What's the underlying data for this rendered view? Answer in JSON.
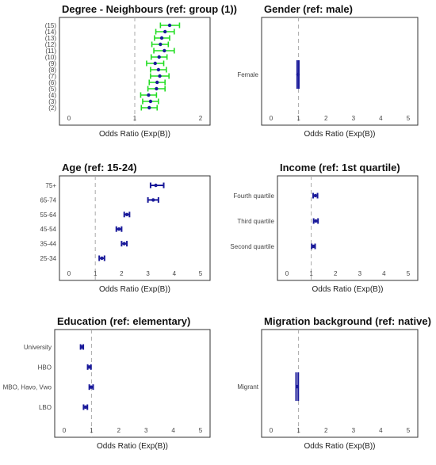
{
  "chart_data": [
    {
      "type": "forest",
      "title": "Degree - Neighbours (ref: group (1))",
      "xlabel": "Odds Ratio (Exp(B))",
      "xlim": [
        0,
        2
      ],
      "xticks": [
        "0",
        "1",
        "2"
      ],
      "ref_line": 1,
      "ci_color": "#22dd22",
      "point_color": "#1a1a9a",
      "categories": [
        "(15)",
        "(14)",
        "(13)",
        "(12)",
        "(11)",
        "(10)",
        "(9)",
        "(8)",
        "(7)",
        "(6)",
        "(5)",
        "(4)",
        "(3)",
        "(2)"
      ],
      "estimates": [
        1.53,
        1.46,
        1.41,
        1.39,
        1.45,
        1.37,
        1.31,
        1.36,
        1.38,
        1.34,
        1.33,
        1.21,
        1.24,
        1.22
      ],
      "lower": [
        1.39,
        1.32,
        1.3,
        1.26,
        1.29,
        1.25,
        1.18,
        1.24,
        1.24,
        1.22,
        1.2,
        1.09,
        1.12,
        1.1
      ],
      "upper": [
        1.68,
        1.6,
        1.53,
        1.51,
        1.6,
        1.49,
        1.44,
        1.48,
        1.52,
        1.46,
        1.46,
        1.33,
        1.36,
        1.34
      ]
    },
    {
      "type": "forest",
      "title": "Gender (ref: male)",
      "xlabel": "Odds Ratio (Exp(B))",
      "xlim": [
        0,
        5
      ],
      "xticks": [
        "0",
        "1",
        "2",
        "3",
        "4",
        "5"
      ],
      "ref_line": 1,
      "ci_color": "#1a1a9a",
      "point_color": "#1a1a9a",
      "categories": [
        "Female"
      ],
      "estimates": [
        0.98
      ],
      "lower": [
        0.95
      ],
      "upper": [
        1.01
      ]
    },
    {
      "type": "forest",
      "title": "Age (ref: 15-24)",
      "xlabel": "Odds Ratio (Exp(B))",
      "xlim": [
        0,
        5
      ],
      "xticks": [
        "0",
        "1",
        "2",
        "3",
        "4",
        "5"
      ],
      "ref_line": 1,
      "ci_color": "#1a1a9a",
      "point_color": "#1a1a9a",
      "categories": [
        "75+",
        "65-74",
        "55-64",
        "45-54",
        "35-44",
        "25-34"
      ],
      "estimates": [
        3.3,
        3.2,
        2.2,
        1.9,
        2.1,
        1.25
      ],
      "lower": [
        3.1,
        3.0,
        2.1,
        1.8,
        2.0,
        1.15
      ],
      "upper": [
        3.6,
        3.4,
        2.3,
        2.0,
        2.2,
        1.35
      ]
    },
    {
      "type": "forest",
      "title": "Income (ref: 1st quartile)",
      "xlabel": "Odds Ratio (Exp(B))",
      "xlim": [
        0,
        5
      ],
      "xticks": [
        "0",
        "1",
        "2",
        "3",
        "4",
        "5"
      ],
      "ref_line": 1,
      "ci_color": "#1a1a9a",
      "point_color": "#1a1a9a",
      "categories": [
        "Fourth quartile",
        "Third quartile",
        "Second quartile"
      ],
      "estimates": [
        1.17,
        1.19,
        1.09
      ],
      "lower": [
        1.08,
        1.1,
        1.02
      ],
      "upper": [
        1.26,
        1.28,
        1.16
      ]
    },
    {
      "type": "forest",
      "title": "Education (ref: elementary)",
      "xlabel": "Odds Ratio (Exp(B))",
      "xlim": [
        0,
        5
      ],
      "xticks": [
        "0",
        "1",
        "2",
        "3",
        "4",
        "5"
      ],
      "ref_line": 1,
      "ci_color": "#1a1a9a",
      "point_color": "#1a1a9a",
      "categories": [
        "University",
        "HBO",
        "MBO, Havo, Vwo",
        "LBO"
      ],
      "estimates": [
        0.65,
        0.92,
        0.99,
        0.78
      ],
      "lower": [
        0.6,
        0.86,
        0.92,
        0.71
      ],
      "upper": [
        0.7,
        0.98,
        1.06,
        0.85
      ]
    },
    {
      "type": "forest",
      "title": "Migration background (ref: native)",
      "xlabel": "Odds Ratio (Exp(B))",
      "xlim": [
        0,
        5
      ],
      "xticks": [
        "0",
        "1",
        "2",
        "3",
        "4",
        "5"
      ],
      "ref_line": 1,
      "ci_color": "#1a1a9a",
      "point_color": "#1a1a9a",
      "categories": [
        "Migrant"
      ],
      "estimates": [
        0.95
      ],
      "lower": [
        0.91
      ],
      "upper": [
        0.99
      ]
    }
  ]
}
